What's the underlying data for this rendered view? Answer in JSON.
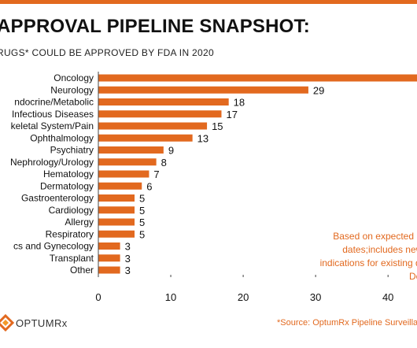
{
  "header": {
    "title": "APPROVAL PIPELINE SNAPSHOT:",
    "subtitle": "RUGS* COULD BE APPROVED BY FDA IN 2020"
  },
  "note": {
    "lines": [
      "Based on expected NDA/",
      "dates;includes new dru",
      "indications for existing drugs",
      "Decem"
    ]
  },
  "logo": {
    "text": "OPTUMRx",
    "icon": "optum-logo-icon"
  },
  "source": {
    "text": "*Source: OptumRx Pipeline Surveilla"
  },
  "colors": {
    "bar": "#E2691F",
    "accent": "#E2691F",
    "text": "#111111"
  },
  "chart_data": {
    "type": "bar",
    "orientation": "horizontal",
    "title": "APPROVAL PIPELINE SNAPSHOT:",
    "categories": [
      "Oncology",
      "Neurology",
      "ndocrine/Metabolic",
      "Infectious Diseases",
      "keletal System/Pain",
      "Ophthalmology",
      "Psychiatry",
      "Nephrology/Urology",
      "Hematology",
      "Dermatology",
      "Gastroenterology",
      "Cardiology",
      "Allergy",
      "Respiratory",
      "cs and Gynecology",
      "Transplant",
      "Other"
    ],
    "values": [
      44,
      29,
      18,
      17,
      15,
      13,
      9,
      8,
      7,
      6,
      5,
      5,
      5,
      5,
      3,
      3,
      3
    ],
    "value_labels": [
      "",
      "29",
      "18",
      "17",
      "15",
      "13",
      "9",
      "8",
      "7",
      "6",
      "5",
      "5",
      "5",
      "5",
      "3",
      "3",
      "3"
    ],
    "xlim": [
      0,
      44
    ],
    "xticks": [
      0,
      10,
      20,
      30,
      40
    ],
    "xtick_labels": [
      "0",
      "10",
      "20",
      "30",
      "40"
    ],
    "grid": false,
    "legend": "none"
  }
}
